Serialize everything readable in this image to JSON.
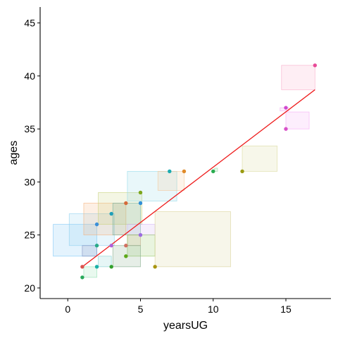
{
  "chart_data": {
    "type": "scatter",
    "title": "",
    "xlabel": "yearsUG",
    "ylabel": "ages",
    "xlim": [
      -1.9,
      18.1
    ],
    "ylim": [
      19.0,
      46.5
    ],
    "x_ticks": [
      0,
      5,
      10,
      15
    ],
    "y_ticks": [
      20,
      25,
      30,
      35,
      40,
      45
    ],
    "grid": false,
    "legend": "none",
    "points": [
      {
        "x": 1,
        "y": 22,
        "color": "#d9534f"
      },
      {
        "x": 1,
        "y": 21,
        "color": "#27a95a"
      },
      {
        "x": 2,
        "y": 22,
        "color": "#1ab0a8"
      },
      {
        "x": 2,
        "y": 24,
        "color": "#2aaa88"
      },
      {
        "x": 2,
        "y": 26,
        "color": "#3c8fd8"
      },
      {
        "x": 3,
        "y": 22,
        "color": "#33a02c"
      },
      {
        "x": 3,
        "y": 24,
        "color": "#b060d8"
      },
      {
        "x": 3,
        "y": 27,
        "color": "#1e9fb8"
      },
      {
        "x": 4,
        "y": 23,
        "color": "#5ca818"
      },
      {
        "x": 4,
        "y": 24,
        "color": "#d07060"
      },
      {
        "x": 4,
        "y": 28,
        "color": "#d46a3a"
      },
      {
        "x": 5,
        "y": 25,
        "color": "#9b6be0"
      },
      {
        "x": 5,
        "y": 28,
        "color": "#2f8fd8"
      },
      {
        "x": 5,
        "y": 29,
        "color": "#7ca61c"
      },
      {
        "x": 6,
        "y": 22,
        "color": "#a89410"
      },
      {
        "x": 7,
        "y": 31,
        "color": "#1aabb0"
      },
      {
        "x": 8,
        "y": 31,
        "color": "#e08a28"
      },
      {
        "x": 10,
        "y": 31,
        "color": "#2aac50"
      },
      {
        "x": 12,
        "y": 31,
        "color": "#9a9a10"
      },
      {
        "x": 15,
        "y": 35,
        "color": "#d850c8"
      },
      {
        "x": 15,
        "y": 37,
        "color": "#d04ad0"
      },
      {
        "x": 17,
        "y": 41,
        "color": "#e84a98"
      }
    ],
    "rects": [
      {
        "x0": -1.0,
        "x1": 2.0,
        "y0": 23.0,
        "y1": 26.0,
        "color": "#7ac4f5"
      },
      {
        "x0": 0.1,
        "x1": 3.2,
        "y0": 24.0,
        "y1": 27.0,
        "color": "#8fd0f0"
      },
      {
        "x0": 1.1,
        "x1": 4.0,
        "y0": 25.0,
        "y1": 28.0,
        "color": "#f5b07a"
      },
      {
        "x0": 2.1,
        "x1": 5.1,
        "y0": 26.0,
        "y1": 29.0,
        "color": "#c8d27a"
      },
      {
        "x0": 3.1,
        "x1": 5.0,
        "y0": 25.0,
        "y1": 28.0,
        "color": "#70b0a0"
      },
      {
        "x0": 4.1,
        "x1": 6.0,
        "y0": 25.0,
        "y1": 26.0,
        "color": "#d0b0f5"
      },
      {
        "x0": 4.1,
        "x1": 5.0,
        "y0": 24.0,
        "y1": 25.0,
        "color": "#c8a090"
      },
      {
        "x0": 4.1,
        "x1": 6.0,
        "y0": 23.0,
        "y1": 25.0,
        "color": "#90c860"
      },
      {
        "x0": 3.1,
        "x1": 5.0,
        "y0": 22.0,
        "y1": 24.0,
        "color": "#80a888"
      },
      {
        "x0": 2.1,
        "x1": 3.0,
        "y0": 22.0,
        "y1": 23.0,
        "color": "#80d0d0"
      },
      {
        "x0": 1.0,
        "x1": 2.0,
        "y0": 23.0,
        "y1": 24.0,
        "color": "#8090c0"
      },
      {
        "x0": 1.1,
        "x1": 2.0,
        "y0": 21.0,
        "y1": 22.0,
        "color": "#90e0b0"
      },
      {
        "x0": 4.1,
        "x1": 7.5,
        "y0": 28.2,
        "y1": 31.0,
        "color": "#90d8e8"
      },
      {
        "x0": 6.2,
        "x1": 8.0,
        "y0": 29.2,
        "y1": 31.0,
        "color": "#f5c898"
      },
      {
        "x0": 6.0,
        "x1": 11.2,
        "y0": 22.0,
        "y1": 27.2,
        "color": "#d8d298"
      },
      {
        "x0": 10.1,
        "x1": 10.3,
        "y0": 31.0,
        "y1": 31.3,
        "color": "#90d8a0"
      },
      {
        "x0": 12.0,
        "x1": 14.4,
        "y0": 31.0,
        "y1": 33.4,
        "color": "#d8d898"
      },
      {
        "x0": 14.6,
        "x1": 15.2,
        "y0": 36.7,
        "y1": 37.0,
        "color": "#f0a8f0"
      },
      {
        "x0": 15.0,
        "x1": 16.6,
        "y0": 35.0,
        "y1": 36.6,
        "color": "#f5a8f5"
      },
      {
        "x0": 14.7,
        "x1": 17.0,
        "y0": 38.7,
        "y1": 41.0,
        "color": "#f8a8c8"
      }
    ],
    "fit_line": {
      "x0": 1,
      "y0": 22.0,
      "x1": 17,
      "y1": 38.7,
      "color": "#ee1c1c"
    }
  }
}
